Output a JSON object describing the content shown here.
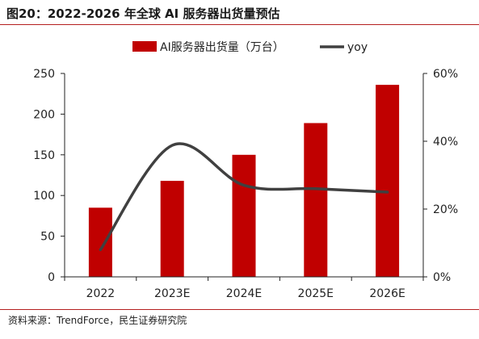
{
  "header": {
    "title": "图20：2022-2026 年全球 AI 服务器出货量预估"
  },
  "footer": {
    "source": "资料来源：TrendForce，民生证券研究院"
  },
  "chart_data": {
    "type": "bar",
    "categories": [
      "2022",
      "2023E",
      "2024E",
      "2025E",
      "2026E"
    ],
    "series": [
      {
        "name": "AI服务器出货量（万台）",
        "type": "bar",
        "axis": "left",
        "color": "#c00000",
        "values": [
          85,
          118,
          150,
          189,
          236
        ]
      },
      {
        "name": "yoy",
        "type": "line",
        "axis": "right",
        "color": "#404040",
        "values": [
          0.08,
          0.388,
          0.27,
          0.26,
          0.25
        ]
      }
    ],
    "y_left": {
      "ylim": [
        0,
        250
      ],
      "ticks": [
        "0",
        "50",
        "100",
        "150",
        "200",
        "250"
      ]
    },
    "y_right": {
      "ylim": [
        0,
        0.6
      ],
      "ticks": [
        "0%",
        "20%",
        "40%",
        "60%"
      ]
    },
    "legend": "top-center",
    "grid": false
  }
}
